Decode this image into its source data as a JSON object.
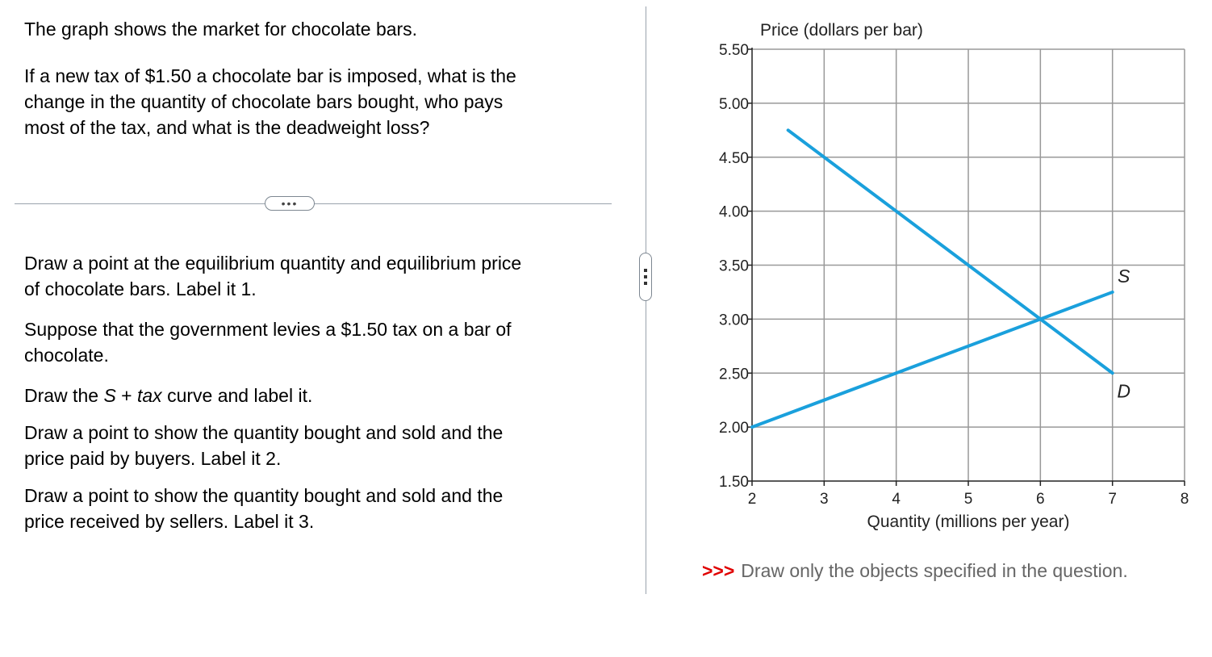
{
  "question": {
    "intro": "The graph shows the market for chocolate bars.",
    "prompt_lines": [
      "If a new tax of $1.50 a chocolate bar is imposed, what is the",
      "change in the quantity of chocolate bars bought, who pays",
      "most of the tax, and what is the deadweight loss?"
    ],
    "more_label": "•••",
    "step1_lines": [
      "Draw a point at the equilibrium quantity and equilibrium price",
      "of chocolate bars. Label it 1."
    ],
    "step2_lines": [
      "Suppose that the government levies a $1.50 tax on a bar of",
      "chocolate."
    ],
    "step3": {
      "prefix": "Draw the ",
      "s": "S",
      "plus": " + ",
      "tax": "tax",
      "suffix": " curve and label it."
    },
    "step4_lines": [
      "Draw a point to show the quantity bought and sold and the",
      "price paid by buyers. Label it 2."
    ],
    "step5_lines": [
      "Draw a point to show the quantity bought and sold and the",
      "price received by sellers. Label it 3."
    ]
  },
  "instruction": {
    "arrows": ">>>",
    "text": "Draw only the objects specified in the question."
  },
  "chart_data": {
    "type": "line",
    "ylabel": "Price (dollars per bar)",
    "xlabel": "Quantity (millions per year)",
    "xlim": [
      2,
      8
    ],
    "ylim": [
      1.5,
      5.5
    ],
    "x_ticks": [
      2,
      3,
      4,
      5,
      6,
      7,
      8
    ],
    "x_tick_labels": [
      "2",
      "3",
      "4",
      "5",
      "6",
      "7",
      "8"
    ],
    "y_ticks": [
      1.5,
      2.0,
      2.5,
      3.0,
      3.5,
      4.0,
      4.5,
      5.0,
      5.5
    ],
    "y_tick_labels": [
      "1.50",
      "2.00",
      "2.50",
      "3.00",
      "3.50",
      "4.00",
      "4.50",
      "5.00",
      "5.50"
    ],
    "grid": true,
    "line_color": "#1aa0dc",
    "series": [
      {
        "name": "S",
        "points": [
          [
            2,
            2.0
          ],
          [
            7,
            3.25
          ]
        ]
      },
      {
        "name": "D",
        "points": [
          [
            2.5,
            4.75
          ],
          [
            7,
            2.5
          ]
        ]
      }
    ]
  }
}
